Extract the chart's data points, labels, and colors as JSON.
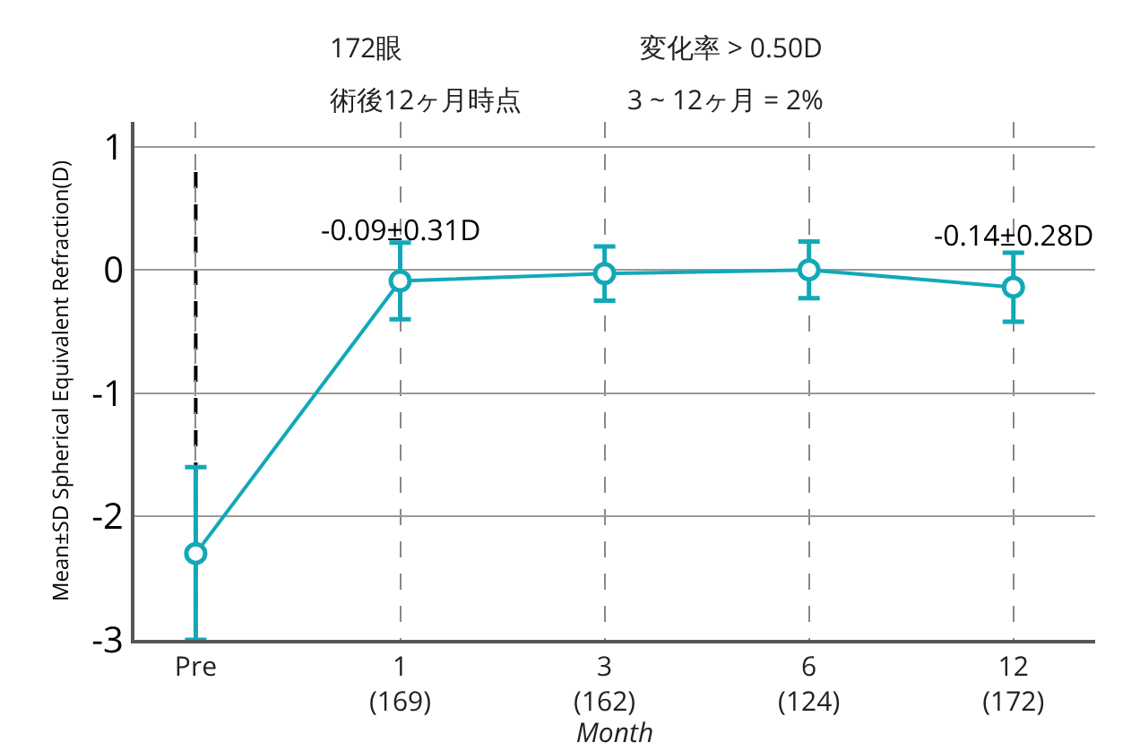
{
  "chart_data": {
    "type": "line",
    "categories": [
      "Pre",
      "1\n(169)",
      "3\n(162)",
      "6\n(124)",
      "12\n(172)"
    ],
    "series": [
      {
        "color": "#13a8b8",
        "values": [
          -2.3,
          -0.09,
          -0.03,
          0.0,
          -0.14
        ],
        "errors": [
          0.7,
          0.31,
          0.22,
          0.23,
          0.28
        ]
      }
    ],
    "xlabel": "Month",
    "ylabel": "Mean±SD Spherical Equivalent Refraction(D)",
    "ylim": [
      -3,
      1.2
    ],
    "yticks": [
      -3,
      -2,
      -1,
      0,
      1
    ],
    "grid": true,
    "marker": "circle",
    "line_style": "solid",
    "ref_lines": [
      {
        "axis": "x",
        "value": "Pre",
        "color": "#000000",
        "line_style": "dashed"
      }
    ],
    "annotations": [
      {
        "text": "-0.09±0.31D",
        "x": "1\n(169)",
        "y": -0.09
      },
      {
        "text": "-0.14±0.28D",
        "x": "12\n(172)",
        "y": -0.14
      },
      "172眼",
      "術後12ヶ月時点",
      "変化率 > 0.50D",
      "3 ~ 12ヶ月 = 2%"
    ]
  }
}
